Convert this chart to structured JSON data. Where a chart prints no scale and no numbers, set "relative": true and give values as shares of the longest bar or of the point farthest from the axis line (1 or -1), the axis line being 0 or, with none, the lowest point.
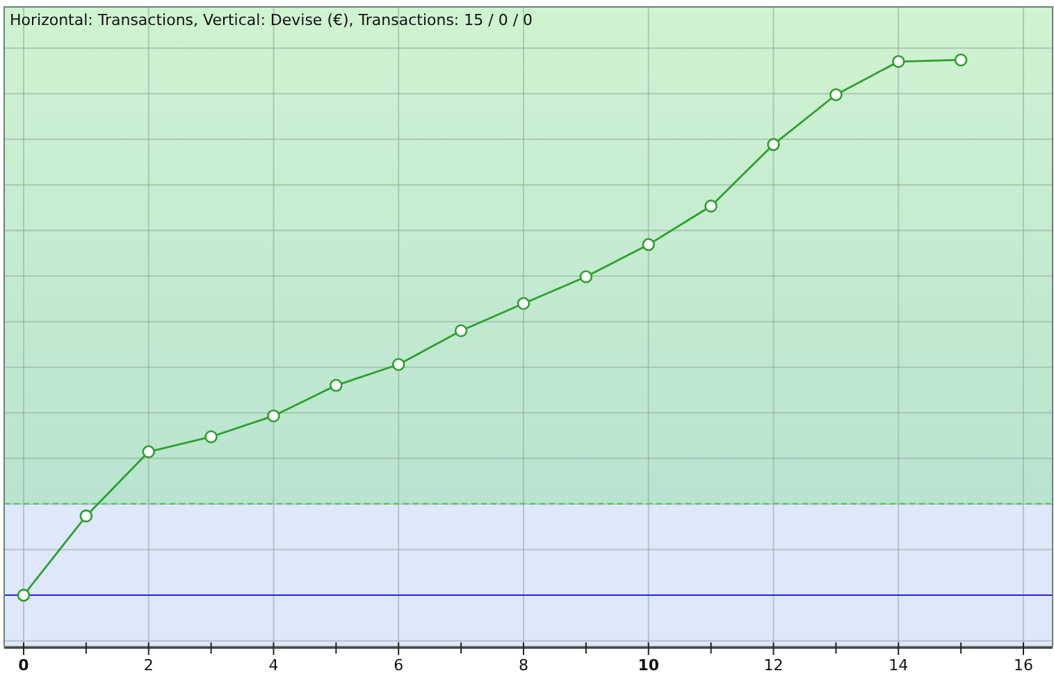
{
  "chart_data": {
    "type": "line",
    "title": "Horizontal: Transactions, Vertical: Devise (€), Transactions: 15 / 0 / 0",
    "relative": true,
    "x": [
      0,
      1,
      2,
      3,
      4,
      5,
      6,
      7,
      8,
      9,
      10,
      11,
      12,
      13,
      14,
      15
    ],
    "series": [
      {
        "color": "#2ca02c",
        "values": [
          0,
          0.148,
          0.268,
          0.296,
          0.335,
          0.392,
          0.431,
          0.494,
          0.545,
          0.595,
          0.655,
          0.727,
          0.842,
          0.935,
          0.997,
          1
        ]
      }
    ],
    "xlim": [
      0,
      16.5
    ],
    "xticks": [
      0,
      2,
      4,
      6,
      8,
      10,
      12,
      14,
      16
    ],
    "ref_lines": [
      {
        "axis": "y",
        "value": 0,
        "color": "#2222dd",
        "line_style": "solid"
      },
      {
        "axis": "y",
        "value": 0.171,
        "color": "#44cc44",
        "line_style": "dashed"
      }
    ],
    "bands": [
      {
        "axis": "y",
        "from": -0.096,
        "to": 0.171,
        "color": "#dfe7fb"
      }
    ],
    "grid": true,
    "marker": "circle",
    "line_style": "solid"
  }
}
